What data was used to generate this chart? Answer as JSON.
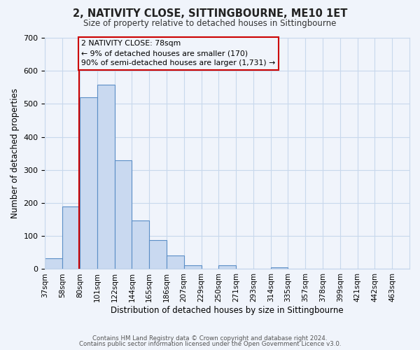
{
  "title": "2, NATIVITY CLOSE, SITTINGBOURNE, ME10 1ET",
  "subtitle": "Size of property relative to detached houses in Sittingbourne",
  "xlabel": "Distribution of detached houses by size in Sittingbourne",
  "ylabel": "Number of detached properties",
  "bin_labels": [
    "37sqm",
    "58sqm",
    "80sqm",
    "101sqm",
    "122sqm",
    "144sqm",
    "165sqm",
    "186sqm",
    "207sqm",
    "229sqm",
    "250sqm",
    "271sqm",
    "293sqm",
    "314sqm",
    "335sqm",
    "357sqm",
    "378sqm",
    "399sqm",
    "421sqm",
    "442sqm",
    "463sqm"
  ],
  "bar_heights": [
    33,
    190,
    520,
    558,
    330,
    147,
    87,
    42,
    12,
    0,
    11,
    0,
    0,
    5,
    0,
    0,
    0,
    0,
    0,
    0,
    0
  ],
  "bar_color": "#c9d9f0",
  "bar_edge_color": "#5b8ec6",
  "vline_color": "#cc0000",
  "ylim": [
    0,
    700
  ],
  "yticks": [
    0,
    100,
    200,
    300,
    400,
    500,
    600,
    700
  ],
  "annotation_line1": "2 NATIVITY CLOSE: 78sqm",
  "annotation_line2": "← 9% of detached houses are smaller (170)",
  "annotation_line3": "90% of semi-detached houses are larger (1,731) →",
  "footer_line1": "Contains HM Land Registry data © Crown copyright and database right 2024.",
  "footer_line2": "Contains public sector information licensed under the Open Government Licence v3.0.",
  "bg_color": "#f0f4fb",
  "grid_color": "#c8d8ec",
  "vline_bin_index": 1.95
}
